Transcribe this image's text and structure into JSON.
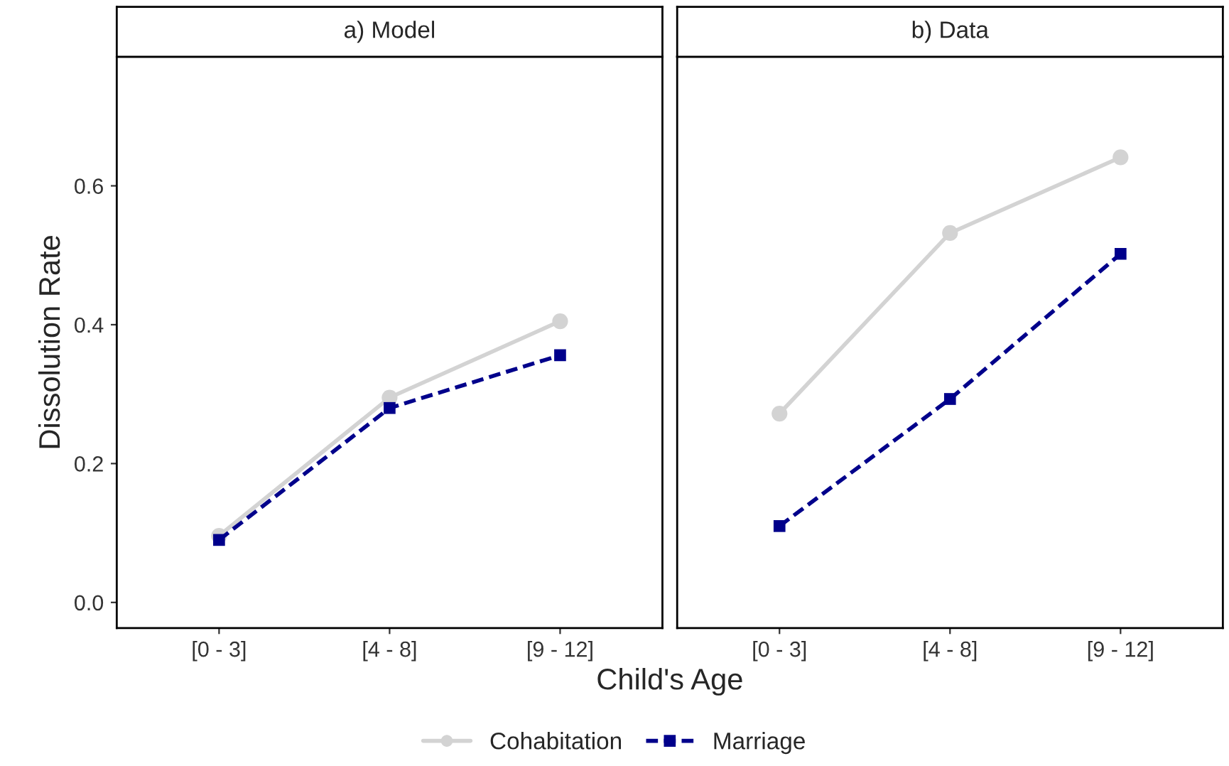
{
  "chart_data": [
    {
      "type": "line",
      "title": "a) Model",
      "xlabel": "Child's Age",
      "ylabel": "Dissolution Rate",
      "categories": [
        "[0 - 3]",
        "[4 - 8]",
        "[9 - 12]"
      ],
      "ylim": [
        -0.037,
        0.786
      ],
      "yticks": [
        {
          "value": 0,
          "label": "0.0"
        },
        0.2,
        0.4,
        0.6
      ],
      "grid": false,
      "legend": "bottom",
      "series": [
        {
          "name": "Cohabitation",
          "color": "#d3d3d3",
          "values": [
            0.096,
            0.295,
            0.405
          ],
          "marker": "circle",
          "line_style": "solid"
        },
        {
          "name": "Marriage",
          "color": "#00008b",
          "values": [
            0.09,
            0.28,
            0.356
          ],
          "marker": "square",
          "line_style": "dashed"
        }
      ]
    },
    {
      "type": "line",
      "title": "b) Data",
      "categories": [
        "[0 - 3]",
        "[4 - 8]",
        "[9 - 12]"
      ],
      "ylim": [
        -0.037,
        0.786
      ],
      "grid": false,
      "legend": "bottom",
      "tick_labels": "x",
      "series": [
        {
          "name": "Cohabitation",
          "color": "#d3d3d3",
          "values": [
            0.272,
            0.532,
            0.641
          ],
          "marker": "circle",
          "line_style": "solid"
        },
        {
          "name": "Marriage",
          "color": "#00008b",
          "values": [
            0.11,
            0.293,
            0.502
          ],
          "marker": "square",
          "line_style": "dashed"
        }
      ]
    }
  ]
}
